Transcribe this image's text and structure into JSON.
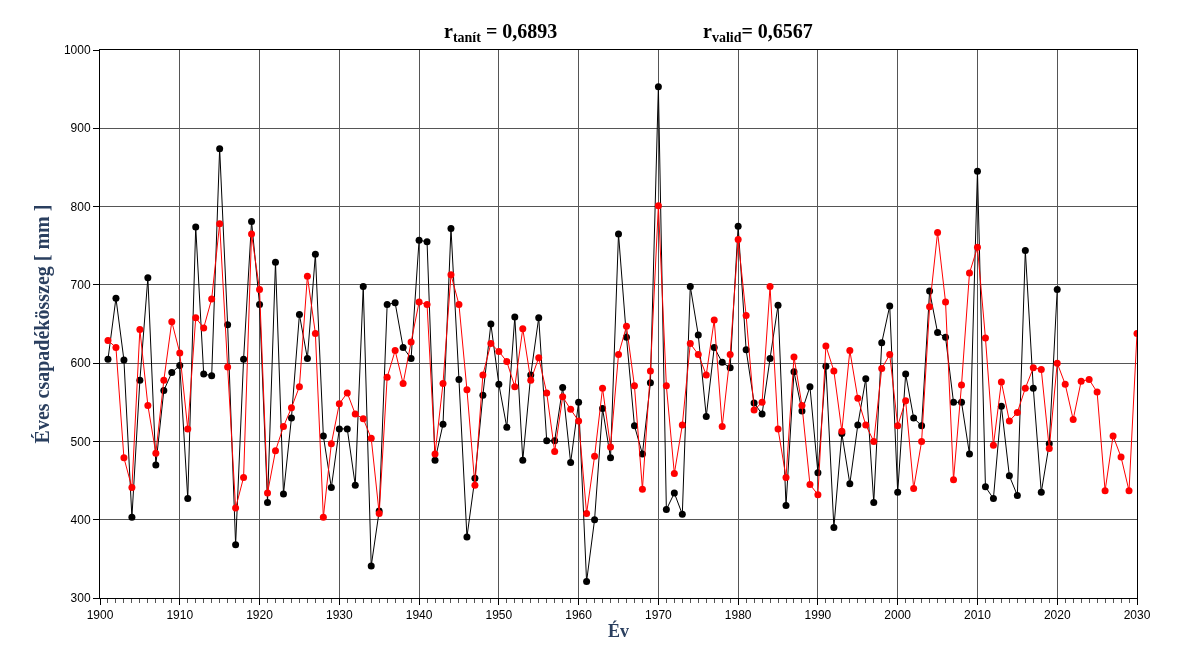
{
  "chart_data": {
    "type": "line",
    "xlabel": "Év",
    "ylabel": "Éves csapadékösszeg [ mm ]",
    "annotations": [
      "r$_{tanít}$ = 0,6893",
      "r$_{valid}$= 0,6567"
    ],
    "xlim": [
      1900,
      2030
    ],
    "xticks": [
      1900,
      1910,
      1920,
      1930,
      1940,
      1950,
      1960,
      1970,
      1980,
      1990,
      2000,
      2010,
      2020,
      2030
    ],
    "ylim": [
      300,
      1000
    ],
    "yticks": [
      300,
      400,
      500,
      600,
      700,
      800,
      900,
      1000
    ],
    "grid": true,
    "marker": "circle",
    "line_style": "solid",
    "series": [
      {
        "color": "#000000",
        "x": [
          1901,
          1902,
          1903,
          1904,
          1905,
          1906,
          1907,
          1908,
          1909,
          1910,
          1911,
          1912,
          1913,
          1914,
          1915,
          1916,
          1917,
          1918,
          1919,
          1920,
          1921,
          1922,
          1923,
          1924,
          1925,
          1926,
          1927,
          1928,
          1929,
          1930,
          1931,
          1932,
          1933,
          1934,
          1935,
          1936,
          1937,
          1938,
          1939,
          1940,
          1941,
          1942,
          1943,
          1944,
          1945,
          1946,
          1947,
          1948,
          1949,
          1950,
          1951,
          1952,
          1953,
          1954,
          1955,
          1956,
          1957,
          1958,
          1959,
          1960,
          1961,
          1962,
          1963,
          1964,
          1965,
          1966,
          1967,
          1968,
          1969,
          1970,
          1971,
          1972,
          1973,
          1974,
          1975,
          1976,
          1977,
          1978,
          1979,
          1980,
          1981,
          1982,
          1983,
          1984,
          1985,
          1986,
          1987,
          1988,
          1989,
          1990,
          1991,
          1992,
          1993,
          1994,
          1995,
          1996,
          1997,
          1998,
          1999,
          2000,
          2001,
          2002,
          2003,
          2004,
          2005,
          2006,
          2007,
          2008,
          2009,
          2010,
          2011,
          2012,
          2013,
          2014,
          2015,
          2016,
          2017,
          2018,
          2019,
          2020
        ],
        "values": [
          605,
          683,
          604,
          403,
          578,
          709,
          470,
          565,
          588,
          597,
          427,
          774,
          586,
          584,
          874,
          649,
          368,
          605,
          781,
          675,
          422,
          729,
          433,
          530,
          662,
          606,
          739,
          507,
          441,
          516,
          516,
          444,
          698,
          341,
          411,
          675,
          677,
          620,
          606,
          757,
          755,
          476,
          522,
          772,
          579,
          378,
          453,
          559,
          650,
          573,
          518,
          659,
          476,
          585,
          658,
          501,
          501,
          569,
          473,
          550,
          321,
          400,
          542,
          479,
          765,
          633,
          520,
          484,
          575,
          953,
          413,
          434,
          407,
          698,
          636,
          532,
          620,
          601,
          594,
          775,
          617,
          549,
          535,
          606,
          674,
          418,
          589,
          539,
          570,
          460,
          596,
          390,
          510,
          446,
          521,
          580,
          422,
          626,
          673,
          435,
          586,
          530,
          520,
          692,
          639,
          633,
          550,
          550,
          484,
          845,
          442,
          427,
          545,
          456,
          431,
          744,
          568,
          435,
          497,
          694
        ]
      },
      {
        "color": "#ff0000",
        "x": [
          1901,
          1902,
          1903,
          1904,
          1905,
          1906,
          1907,
          1908,
          1909,
          1910,
          1911,
          1912,
          1913,
          1914,
          1915,
          1916,
          1917,
          1918,
          1919,
          1920,
          1921,
          1922,
          1923,
          1924,
          1925,
          1926,
          1927,
          1928,
          1929,
          1930,
          1931,
          1932,
          1933,
          1934,
          1935,
          1936,
          1937,
          1938,
          1939,
          1940,
          1941,
          1942,
          1943,
          1944,
          1945,
          1946,
          1947,
          1948,
          1949,
          1950,
          1951,
          1952,
          1953,
          1954,
          1955,
          1956,
          1957,
          1958,
          1959,
          1960,
          1961,
          1962,
          1963,
          1964,
          1965,
          1966,
          1967,
          1968,
          1969,
          1970,
          1971,
          1972,
          1973,
          1974,
          1975,
          1976,
          1977,
          1978,
          1979,
          1980,
          1981,
          1982,
          1983,
          1984,
          1985,
          1986,
          1987,
          1988,
          1989,
          1990,
          1991,
          1992,
          1993,
          1994,
          1995,
          1996,
          1997,
          1998,
          1999,
          2000,
          2001,
          2002,
          2003,
          2004,
          2005,
          2006,
          2007,
          2008,
          2009,
          2010,
          2011,
          2012,
          2013,
          2014,
          2015,
          2016,
          2017,
          2018,
          2019,
          2020,
          2021,
          2022,
          2023,
          2024,
          2025,
          2026,
          2027,
          2028,
          2029,
          2030
        ],
        "values": [
          629,
          620,
          479,
          441,
          643,
          546,
          485,
          578,
          653,
          613,
          516,
          658,
          645,
          682,
          778,
          595,
          415,
          454,
          765,
          694,
          434,
          488,
          519,
          543,
          570,
          711,
          638,
          403,
          497,
          548,
          562,
          535,
          529,
          504,
          408,
          582,
          616,
          574,
          627,
          678,
          675,
          484,
          574,
          713,
          675,
          566,
          444,
          585,
          625,
          615,
          602,
          570,
          644,
          578,
          607,
          562,
          487,
          557,
          541,
          526,
          408,
          481,
          568,
          493,
          611,
          647,
          571,
          439,
          590,
          801,
          571,
          459,
          521,
          625,
          611,
          585,
          655,
          519,
          611,
          758,
          661,
          540,
          550,
          698,
          516,
          454,
          608,
          546,
          445,
          432,
          622,
          590,
          513,
          616,
          555,
          521,
          500,
          593,
          611,
          520,
          552,
          440,
          500,
          672,
          767,
          678,
          451,
          572,
          715,
          748,
          632,
          495,
          576,
          526,
          537,
          568,
          594,
          592,
          491,
          600,
          573,
          528,
          577,
          579,
          563,
          437,
          507,
          480,
          437,
          638
        ]
      }
    ]
  }
}
